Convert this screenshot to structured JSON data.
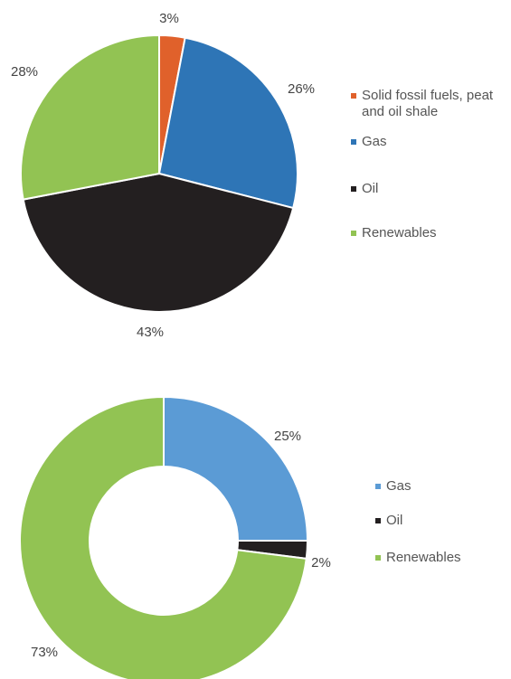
{
  "chart_data": [
    {
      "type": "pie",
      "categories": [
        "Solid fossil fuels, peat and oil shale",
        "Gas",
        "Oil",
        "Renewables"
      ],
      "values": [
        3,
        26,
        43,
        28
      ],
      "labels": [
        "3%",
        "26%",
        "43%",
        "28%"
      ],
      "colors": [
        "#E0612B",
        "#2E75B6",
        "#231F20",
        "#92C353"
      ],
      "legend": "right"
    },
    {
      "type": "donut",
      "categories": [
        "Gas",
        "Oil",
        "Renewables"
      ],
      "values": [
        25,
        2,
        73
      ],
      "labels": [
        "25%",
        "2%",
        "73%"
      ],
      "colors": [
        "#5B9BD5",
        "#231F20",
        "#92C353"
      ],
      "legend": "right"
    }
  ]
}
